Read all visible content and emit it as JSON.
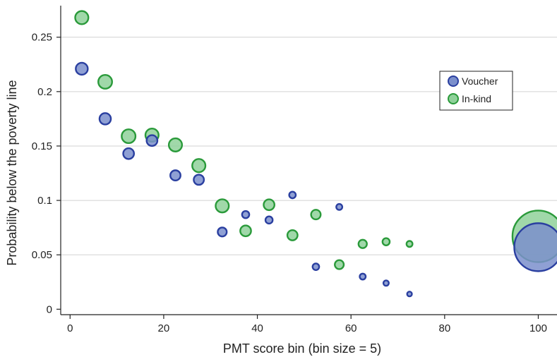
{
  "chart_data": {
    "type": "scatter",
    "title": "",
    "xlabel": "PMT score bin (bin size = 5)",
    "ylabel": "Probability below the poverty line",
    "xlim": [
      -2,
      104
    ],
    "ylim": [
      -0.005,
      0.279
    ],
    "xticks": [
      0,
      20,
      40,
      60,
      80,
      100
    ],
    "xtick_labels": [
      "0",
      "20",
      "40",
      "60",
      "80",
      "100"
    ],
    "yticks": [
      0,
      0.05,
      0.1,
      0.15,
      0.2,
      0.25
    ],
    "ytick_labels": [
      "0",
      "0.05",
      "0.1",
      "0.15",
      "0.2",
      "0.25"
    ],
    "grid": "horizontal",
    "legend": "top-right",
    "marker_size": "proportional to bin observations",
    "series": [
      {
        "name": "Voucher",
        "fill": "#7b8fcc",
        "stroke": "#2a3fa0",
        "points": [
          {
            "x": 2.5,
            "y": 0.221,
            "size": 1.0
          },
          {
            "x": 7.5,
            "y": 0.175,
            "size": 0.95
          },
          {
            "x": 12.5,
            "y": 0.143,
            "size": 0.9
          },
          {
            "x": 17.5,
            "y": 0.155,
            "size": 0.9
          },
          {
            "x": 22.5,
            "y": 0.123,
            "size": 0.85
          },
          {
            "x": 27.5,
            "y": 0.119,
            "size": 0.85
          },
          {
            "x": 32.5,
            "y": 0.071,
            "size": 0.75
          },
          {
            "x": 37.5,
            "y": 0.087,
            "size": 0.6
          },
          {
            "x": 42.5,
            "y": 0.082,
            "size": 0.6
          },
          {
            "x": 47.5,
            "y": 0.105,
            "size": 0.55
          },
          {
            "x": 52.5,
            "y": 0.039,
            "size": 0.55
          },
          {
            "x": 57.5,
            "y": 0.094,
            "size": 0.5
          },
          {
            "x": 62.5,
            "y": 0.03,
            "size": 0.5
          },
          {
            "x": 67.5,
            "y": 0.024,
            "size": 0.45
          },
          {
            "x": 72.5,
            "y": 0.014,
            "size": 0.4
          },
          {
            "x": 100,
            "y": 0.057,
            "size": 4.0
          }
        ]
      },
      {
        "name": "In-kind",
        "fill": "#8fd19a",
        "stroke": "#2a9a3a",
        "points": [
          {
            "x": 2.5,
            "y": 0.268,
            "size": 1.1
          },
          {
            "x": 7.5,
            "y": 0.209,
            "size": 1.15
          },
          {
            "x": 12.5,
            "y": 0.159,
            "size": 1.15
          },
          {
            "x": 17.5,
            "y": 0.16,
            "size": 1.1
          },
          {
            "x": 22.5,
            "y": 0.151,
            "size": 1.1
          },
          {
            "x": 27.5,
            "y": 0.132,
            "size": 1.1
          },
          {
            "x": 32.5,
            "y": 0.095,
            "size": 1.1
          },
          {
            "x": 37.5,
            "y": 0.072,
            "size": 0.9
          },
          {
            "x": 42.5,
            "y": 0.096,
            "size": 0.9
          },
          {
            "x": 47.5,
            "y": 0.068,
            "size": 0.85
          },
          {
            "x": 52.5,
            "y": 0.087,
            "size": 0.8
          },
          {
            "x": 57.5,
            "y": 0.041,
            "size": 0.75
          },
          {
            "x": 62.5,
            "y": 0.06,
            "size": 0.7
          },
          {
            "x": 67.5,
            "y": 0.062,
            "size": 0.6
          },
          {
            "x": 72.5,
            "y": 0.06,
            "size": 0.5
          },
          {
            "x": 100,
            "y": 0.067,
            "size": 4.3
          }
        ]
      }
    ]
  }
}
